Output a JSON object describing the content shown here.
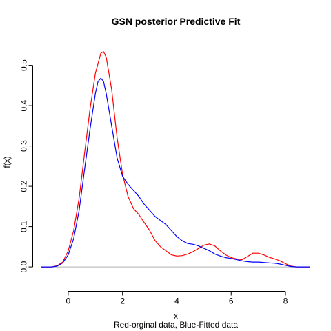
{
  "chart_data": {
    "type": "line",
    "title": "GSN posterior Predictive Fit",
    "xlabel": "x",
    "ylabel": "f(x)",
    "subtitle": "Red-orginal data, Blue-Fitted data",
    "xlim": [
      -1,
      8.9
    ],
    "ylim": [
      -0.04,
      0.56
    ],
    "x_ticks": [
      0,
      2,
      4,
      6,
      8
    ],
    "y_ticks": [
      0.0,
      0.1,
      0.2,
      0.3,
      0.4,
      0.5
    ],
    "x_tick_labels": [
      "0",
      "2",
      "4",
      "6",
      "8"
    ],
    "y_tick_labels": [
      "0.0",
      "0.1",
      "0.2",
      "0.3",
      "0.4",
      "0.5"
    ],
    "baseline": {
      "y": 0,
      "color": "#b0b0b0"
    },
    "series": [
      {
        "color": "#ff0000",
        "points": [
          [
            -1.0,
            0.0
          ],
          [
            -0.6,
            0.0
          ],
          [
            -0.4,
            0.003
          ],
          [
            -0.2,
            0.012
          ],
          [
            0.0,
            0.04
          ],
          [
            0.2,
            0.09
          ],
          [
            0.4,
            0.17
          ],
          [
            0.6,
            0.28
          ],
          [
            0.8,
            0.39
          ],
          [
            1.0,
            0.48
          ],
          [
            1.2,
            0.53
          ],
          [
            1.3,
            0.534
          ],
          [
            1.4,
            0.52
          ],
          [
            1.6,
            0.44
          ],
          [
            1.8,
            0.32
          ],
          [
            2.0,
            0.23
          ],
          [
            2.2,
            0.175
          ],
          [
            2.4,
            0.145
          ],
          [
            2.6,
            0.13
          ],
          [
            2.8,
            0.11
          ],
          [
            3.0,
            0.09
          ],
          [
            3.2,
            0.065
          ],
          [
            3.4,
            0.05
          ],
          [
            3.6,
            0.04
          ],
          [
            3.8,
            0.03
          ],
          [
            4.0,
            0.027
          ],
          [
            4.2,
            0.028
          ],
          [
            4.4,
            0.032
          ],
          [
            4.6,
            0.038
          ],
          [
            4.8,
            0.046
          ],
          [
            5.0,
            0.054
          ],
          [
            5.2,
            0.057
          ],
          [
            5.4,
            0.052
          ],
          [
            5.6,
            0.04
          ],
          [
            5.8,
            0.03
          ],
          [
            6.0,
            0.023
          ],
          [
            6.2,
            0.02
          ],
          [
            6.4,
            0.018
          ],
          [
            6.6,
            0.026
          ],
          [
            6.8,
            0.034
          ],
          [
            7.0,
            0.034
          ],
          [
            7.2,
            0.03
          ],
          [
            7.4,
            0.024
          ],
          [
            7.6,
            0.02
          ],
          [
            7.8,
            0.015
          ],
          [
            8.0,
            0.008
          ],
          [
            8.2,
            0.002
          ],
          [
            8.4,
            0.0
          ],
          [
            8.9,
            0.0
          ]
        ]
      },
      {
        "color": "#0000ff",
        "points": [
          [
            -1.0,
            0.0
          ],
          [
            -0.6,
            0.0
          ],
          [
            -0.4,
            0.002
          ],
          [
            -0.2,
            0.01
          ],
          [
            0.0,
            0.03
          ],
          [
            0.2,
            0.07
          ],
          [
            0.4,
            0.14
          ],
          [
            0.6,
            0.24
          ],
          [
            0.8,
            0.34
          ],
          [
            1.0,
            0.43
          ],
          [
            1.1,
            0.46
          ],
          [
            1.2,
            0.468
          ],
          [
            1.3,
            0.46
          ],
          [
            1.4,
            0.43
          ],
          [
            1.6,
            0.35
          ],
          [
            1.8,
            0.27
          ],
          [
            2.0,
            0.225
          ],
          [
            2.2,
            0.205
          ],
          [
            2.4,
            0.19
          ],
          [
            2.6,
            0.175
          ],
          [
            2.8,
            0.155
          ],
          [
            3.0,
            0.14
          ],
          [
            3.2,
            0.125
          ],
          [
            3.4,
            0.115
          ],
          [
            3.6,
            0.105
          ],
          [
            3.8,
            0.09
          ],
          [
            4.0,
            0.075
          ],
          [
            4.2,
            0.065
          ],
          [
            4.4,
            0.058
          ],
          [
            4.6,
            0.056
          ],
          [
            4.8,
            0.052
          ],
          [
            5.0,
            0.046
          ],
          [
            5.2,
            0.04
          ],
          [
            5.4,
            0.032
          ],
          [
            5.6,
            0.027
          ],
          [
            5.8,
            0.023
          ],
          [
            6.0,
            0.021
          ],
          [
            6.2,
            0.018
          ],
          [
            6.4,
            0.015
          ],
          [
            6.6,
            0.013
          ],
          [
            6.8,
            0.012
          ],
          [
            7.0,
            0.012
          ],
          [
            7.2,
            0.011
          ],
          [
            7.4,
            0.01
          ],
          [
            7.6,
            0.009
          ],
          [
            7.8,
            0.007
          ],
          [
            8.0,
            0.004
          ],
          [
            8.2,
            0.001
          ],
          [
            8.4,
            0.0
          ],
          [
            8.9,
            0.0
          ]
        ]
      }
    ]
  }
}
